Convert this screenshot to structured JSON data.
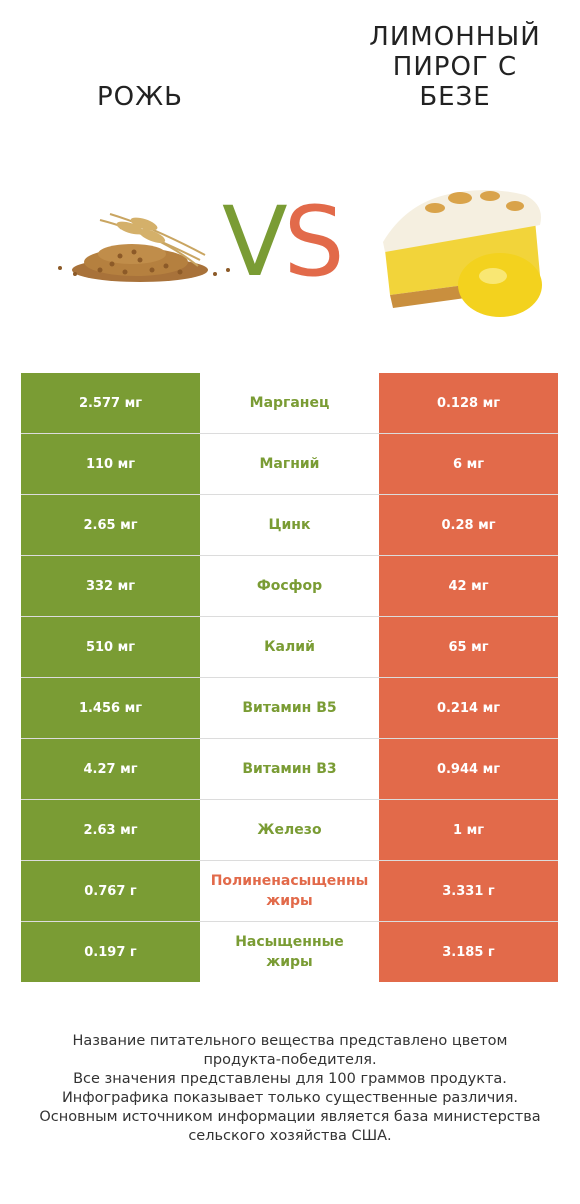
{
  "left_product": {
    "name": "РОЖЬ",
    "color": "#7a9c34"
  },
  "right_product": {
    "name": "ЛИМОННЫЙ ПИРОГ С БЕЗЕ",
    "name_lines": [
      "ЛИМОННЫЙ",
      "ПИРОГ С",
      "БЕЗЕ"
    ],
    "color": "#e26a4a"
  },
  "vs": {
    "v": "V",
    "s": "S"
  },
  "chart_data": {
    "type": "table",
    "columns": [
      "РОЖЬ",
      "",
      "ЛИМОННЫЙ ПИРОГ С БЕЗЕ"
    ],
    "rows": [
      {
        "nutrient": "Марганец",
        "left": "2.577 мг",
        "right": "0.128 мг",
        "winner": "left"
      },
      {
        "nutrient": "Магний",
        "left": "110 мг",
        "right": "6 мг",
        "winner": "left"
      },
      {
        "nutrient": "Цинк",
        "left": "2.65 мг",
        "right": "0.28 мг",
        "winner": "left"
      },
      {
        "nutrient": "Фосфор",
        "left": "332 мг",
        "right": "42 мг",
        "winner": "left"
      },
      {
        "nutrient": "Калий",
        "left": "510 мг",
        "right": "65 мг",
        "winner": "left"
      },
      {
        "nutrient": "Витамин B5",
        "left": "1.456 мг",
        "right": "0.214 мг",
        "winner": "left"
      },
      {
        "nutrient": "Витамин B3",
        "left": "4.27 мг",
        "right": "0.944 мг",
        "winner": "left"
      },
      {
        "nutrient": "Железо",
        "left": "2.63 мг",
        "right": "1 мг",
        "winner": "left"
      },
      {
        "nutrient": "Полиненасыщенны\nжиры",
        "left": "0.767 г",
        "right": "3.331 г",
        "winner": "right"
      },
      {
        "nutrient": "Насыщенные\nжиры",
        "left": "0.197 г",
        "right": "3.185 г",
        "winner": "left"
      }
    ]
  },
  "footer": {
    "lines": [
      "Название питательного вещества представлено цветом",
      "продукта-победителя.",
      "Все значения представлены для 100 граммов продукта.",
      "Инфографика показывает только существенные различия.",
      "Основным источником информации является база министерства",
      "сельского хозяйства США."
    ]
  }
}
